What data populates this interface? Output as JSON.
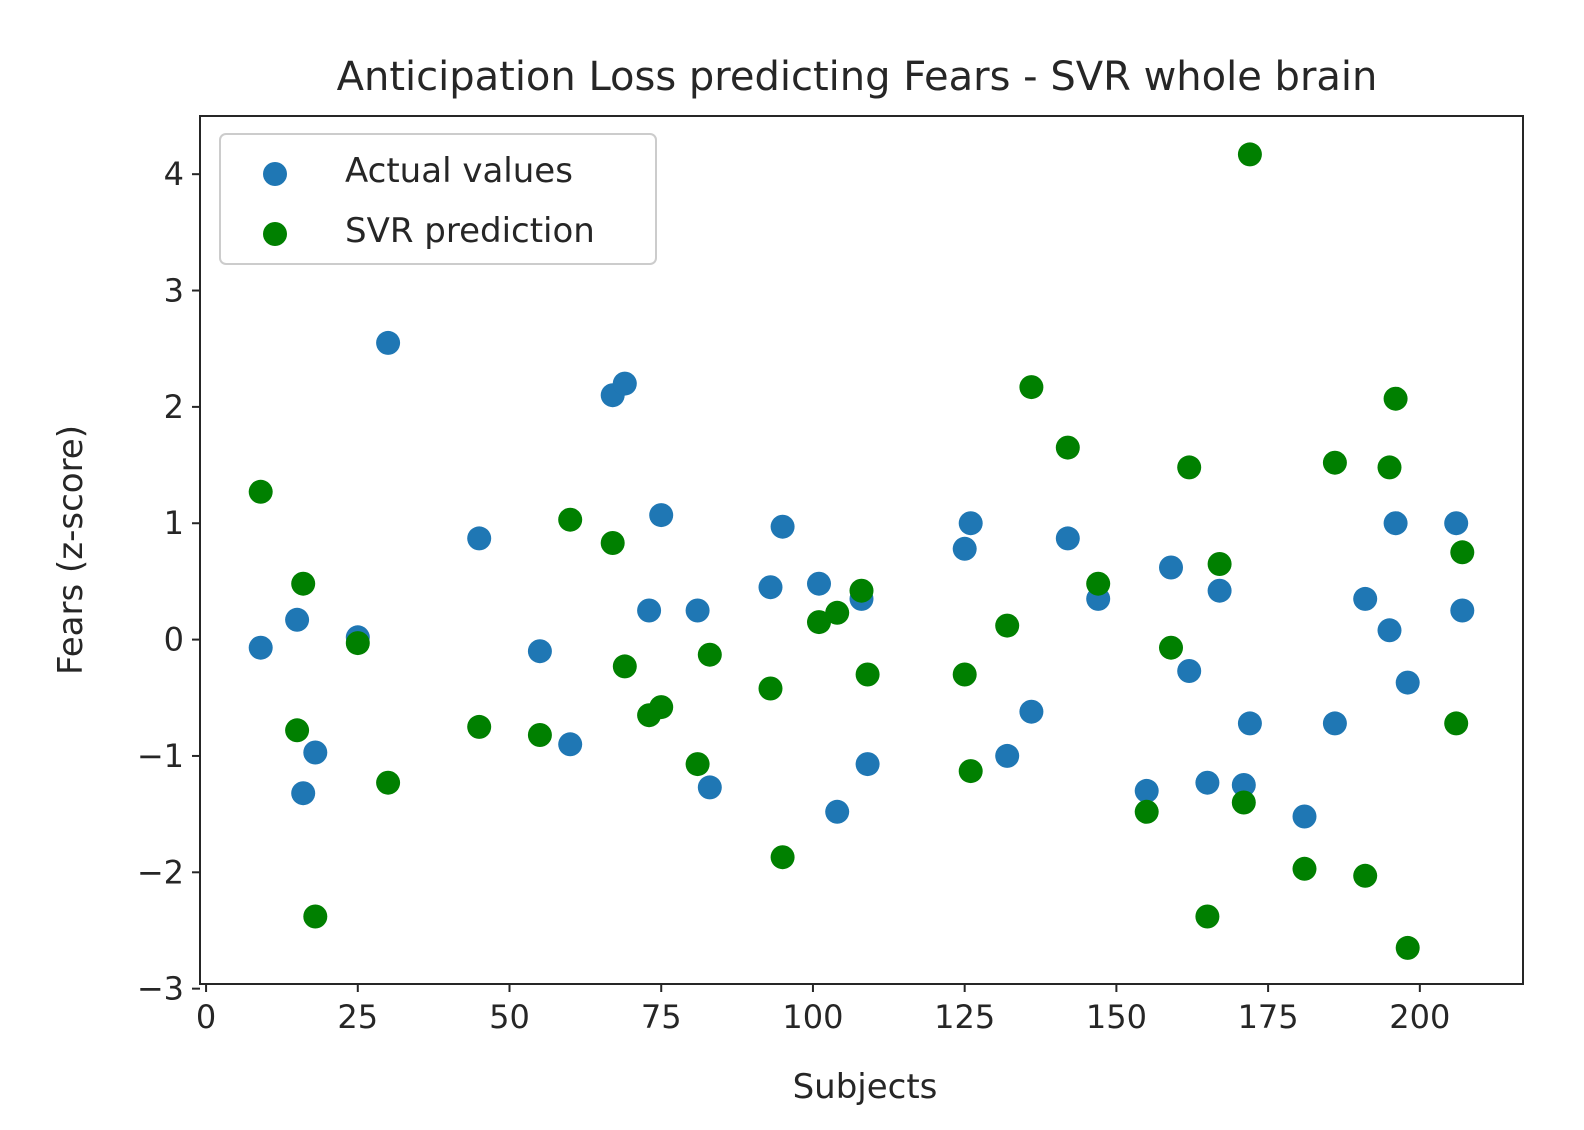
{
  "chart_data": {
    "type": "scatter",
    "title": "Anticipation Loss predicting Fears - SVR whole brain",
    "xlabel": "Subjects",
    "ylabel": "Fears (z-score)",
    "xlim": [
      -1,
      217
    ],
    "ylim": [
      -2.96,
      4.5
    ],
    "x_ticks": [
      0,
      25,
      50,
      75,
      100,
      125,
      150,
      175,
      200
    ],
    "y_ticks": [
      -3,
      -2,
      -1,
      0,
      1,
      2,
      3,
      4
    ],
    "y_tick_labels": [
      "−3",
      "−2",
      "−1",
      "0",
      "1",
      "2",
      "3",
      "4"
    ],
    "grid": false,
    "legend_position": "top-left",
    "series": [
      {
        "name": "Actual values",
        "color": "#1f77b4",
        "points": [
          [
            9,
            -0.07
          ],
          [
            15,
            0.17
          ],
          [
            16,
            -1.32
          ],
          [
            18,
            -0.97
          ],
          [
            25,
            0.02
          ],
          [
            30,
            2.55
          ],
          [
            45,
            0.87
          ],
          [
            55,
            -0.1
          ],
          [
            60,
            -0.9
          ],
          [
            67,
            2.1
          ],
          [
            69,
            2.2
          ],
          [
            73,
            0.25
          ],
          [
            75,
            1.07
          ],
          [
            81,
            0.25
          ],
          [
            83,
            -1.27
          ],
          [
            93,
            0.45
          ],
          [
            95,
            0.97
          ],
          [
            101,
            0.48
          ],
          [
            104,
            -1.48
          ],
          [
            108,
            0.35
          ],
          [
            109,
            -1.07
          ],
          [
            125,
            0.78
          ],
          [
            126,
            1.0
          ],
          [
            132,
            -1.0
          ],
          [
            136,
            -0.62
          ],
          [
            142,
            0.87
          ],
          [
            147,
            0.35
          ],
          [
            155,
            -1.3
          ],
          [
            159,
            0.62
          ],
          [
            162,
            -0.27
          ],
          [
            165,
            -1.23
          ],
          [
            167,
            0.42
          ],
          [
            171,
            -1.25
          ],
          [
            172,
            -0.72
          ],
          [
            181,
            -1.52
          ],
          [
            186,
            -0.72
          ],
          [
            191,
            0.35
          ],
          [
            195,
            0.08
          ],
          [
            196,
            1.0
          ],
          [
            198,
            -0.37
          ],
          [
            206,
            1.0
          ],
          [
            207,
            0.25
          ]
        ]
      },
      {
        "name": "SVR prediction",
        "color": "#008000",
        "points": [
          [
            9,
            1.27
          ],
          [
            15,
            -0.78
          ],
          [
            16,
            0.48
          ],
          [
            18,
            -2.38
          ],
          [
            25,
            -0.03
          ],
          [
            30,
            -1.23
          ],
          [
            45,
            -0.75
          ],
          [
            55,
            -0.82
          ],
          [
            60,
            1.03
          ],
          [
            67,
            0.83
          ],
          [
            69,
            -0.23
          ],
          [
            73,
            -0.65
          ],
          [
            75,
            -0.58
          ],
          [
            81,
            -1.07
          ],
          [
            83,
            -0.13
          ],
          [
            93,
            -0.42
          ],
          [
            95,
            -1.87
          ],
          [
            101,
            0.15
          ],
          [
            104,
            0.23
          ],
          [
            108,
            0.42
          ],
          [
            109,
            -0.3
          ],
          [
            125,
            -0.3
          ],
          [
            126,
            -1.13
          ],
          [
            132,
            0.12
          ],
          [
            136,
            2.17
          ],
          [
            142,
            1.65
          ],
          [
            147,
            0.48
          ],
          [
            155,
            -1.48
          ],
          [
            159,
            -0.07
          ],
          [
            162,
            1.48
          ],
          [
            165,
            -2.38
          ],
          [
            167,
            0.65
          ],
          [
            171,
            -1.4
          ],
          [
            172,
            4.17
          ],
          [
            181,
            -1.97
          ],
          [
            186,
            1.52
          ],
          [
            191,
            -2.03
          ],
          [
            195,
            1.48
          ],
          [
            196,
            2.07
          ],
          [
            198,
            -2.65
          ],
          [
            206,
            -0.72
          ],
          [
            207,
            0.75
          ]
        ]
      }
    ]
  }
}
